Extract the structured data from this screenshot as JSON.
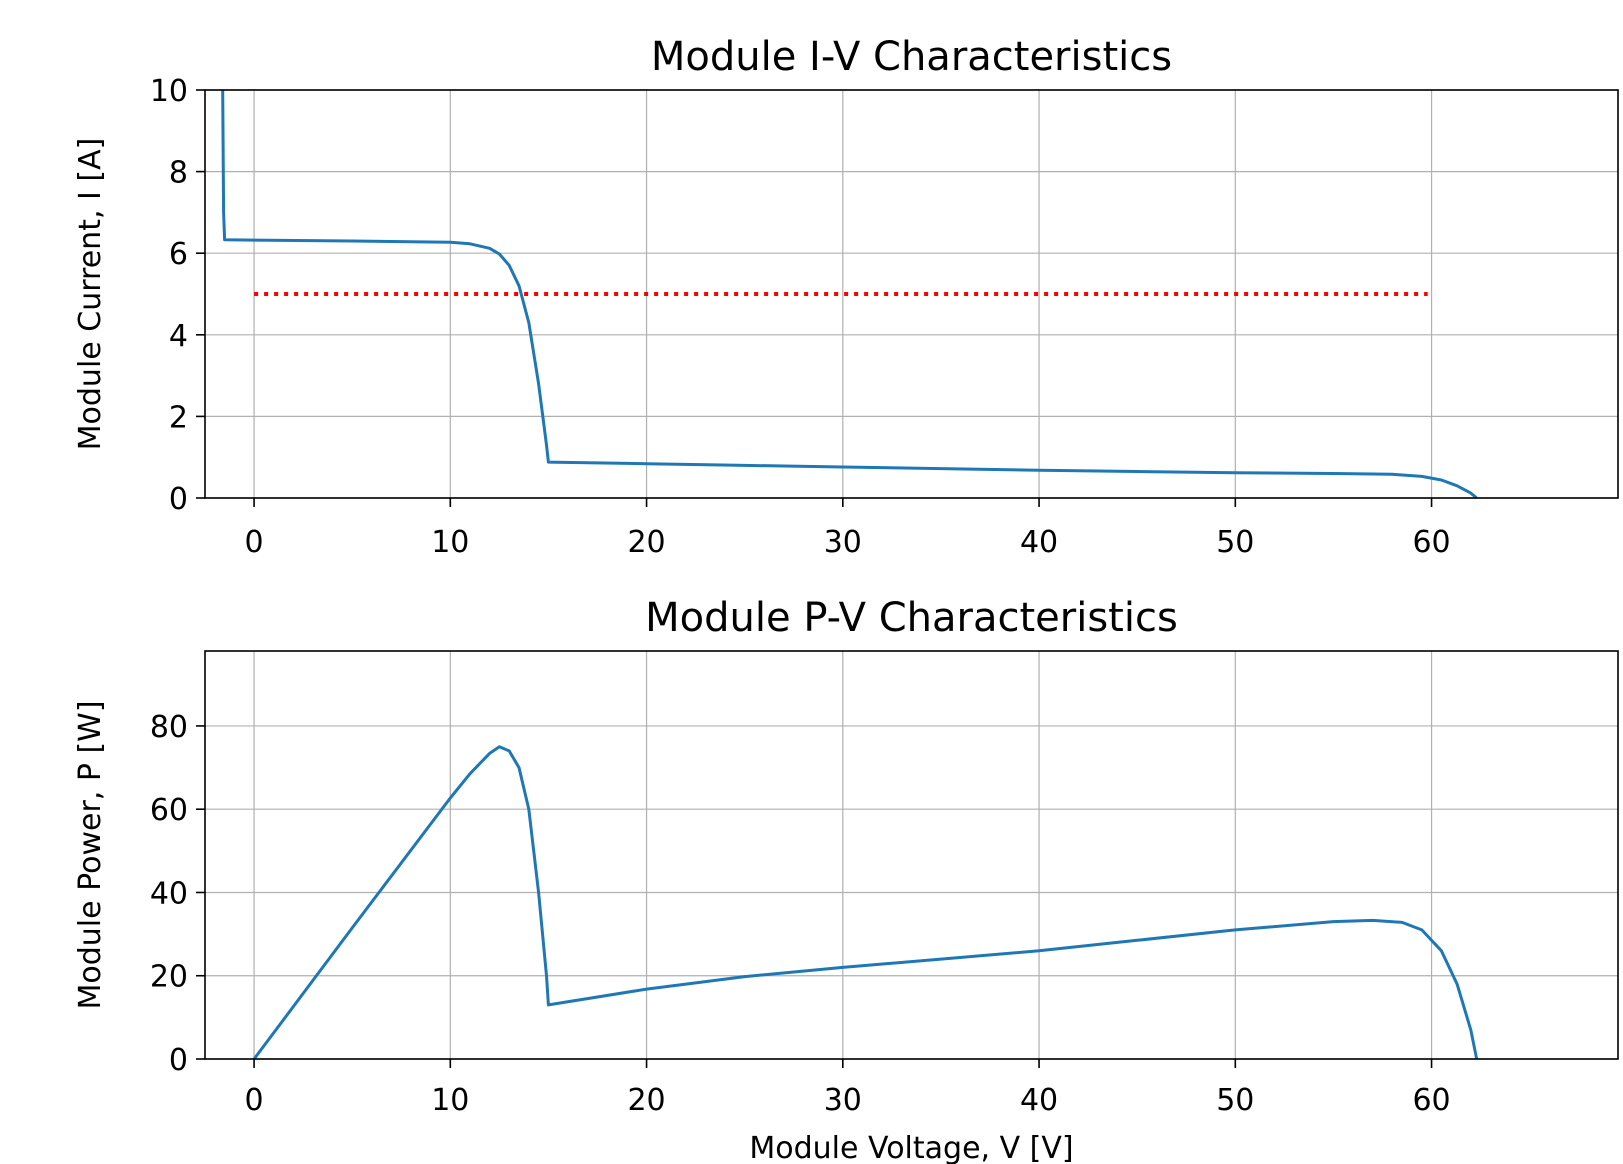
{
  "chart_data": [
    {
      "type": "line",
      "title": "Module I-V Characteristics",
      "xlabel": "",
      "ylabel": "Module Current, I [A]",
      "xlim": [
        -2.5,
        69.5
      ],
      "ylim": [
        0,
        10
      ],
      "xticks": [
        0,
        10,
        20,
        30,
        40,
        50,
        60
      ],
      "xtick_labels": [
        "0",
        "10",
        "20",
        "30",
        "40",
        "50",
        "60"
      ],
      "yticks": [
        0,
        2,
        4,
        6,
        8,
        10
      ],
      "ytick_labels": [
        "0",
        "2",
        "4",
        "6",
        "8",
        "10"
      ],
      "grid": true,
      "series": [
        {
          "color": "#1f77b4",
          "style": "solid",
          "x": [
            -1.6,
            -1.55,
            -1.5,
            0,
            5,
            10,
            11,
            12,
            12.5,
            13,
            13.5,
            14,
            14.5,
            14.9,
            15,
            20,
            25,
            30,
            35,
            40,
            45,
            50,
            55,
            58,
            59.5,
            60.5,
            61.3,
            62,
            62.3
          ],
          "y": [
            10,
            7.0,
            6.33,
            6.32,
            6.3,
            6.27,
            6.23,
            6.12,
            5.98,
            5.7,
            5.2,
            4.3,
            2.8,
            1.3,
            0.88,
            0.84,
            0.8,
            0.76,
            0.72,
            0.68,
            0.65,
            0.62,
            0.6,
            0.58,
            0.53,
            0.44,
            0.3,
            0.12,
            0
          ]
        },
        {
          "color": "#ff0000",
          "style": "dotted",
          "x": [
            0,
            59.8
          ],
          "y": [
            5,
            5
          ]
        }
      ]
    },
    {
      "type": "line",
      "title": "Module P-V Characteristics",
      "xlabel": "Module Voltage, V [V]",
      "ylabel": "Module Power,  P [W]",
      "xlim": [
        -2.5,
        69.5
      ],
      "ylim": [
        0,
        98
      ],
      "xticks": [
        0,
        10,
        20,
        30,
        40,
        50,
        60
      ],
      "xtick_labels": [
        "0",
        "10",
        "20",
        "30",
        "40",
        "50",
        "60"
      ],
      "yticks": [
        0,
        20,
        40,
        60,
        80
      ],
      "ytick_labels": [
        "0",
        "20",
        "40",
        "60",
        "80"
      ],
      "grid": true,
      "series": [
        {
          "color": "#1f77b4",
          "style": "solid",
          "x": [
            0,
            5,
            10,
            11,
            12,
            12.5,
            13,
            13.5,
            14,
            14.5,
            14.9,
            15,
            20,
            25,
            30,
            35,
            40,
            45,
            50,
            55,
            57,
            58.5,
            59.5,
            60.5,
            61.3,
            62,
            62.3
          ],
          "y": [
            0,
            31.5,
            62.7,
            68.5,
            73.4,
            75,
            74,
            70,
            60,
            40,
            20,
            13,
            16.8,
            19.8,
            22,
            24,
            26,
            28.5,
            31,
            33,
            33.3,
            32.8,
            31,
            26,
            18,
            7,
            0
          ]
        }
      ]
    }
  ]
}
